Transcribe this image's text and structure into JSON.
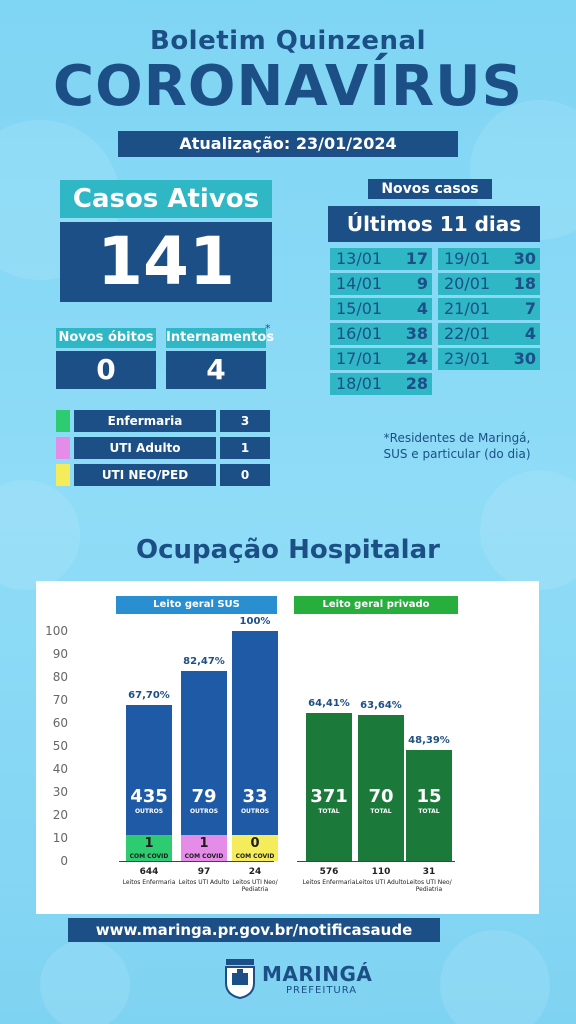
{
  "header": {
    "subtitle": "Boletim Quinzenal",
    "title": "CORONAVÍRUS",
    "update": "Atualização: 23/01/2024"
  },
  "active_cases": {
    "label": "Casos Ativos",
    "value": "141"
  },
  "deaths": {
    "label": "Novos óbitos",
    "value": "0"
  },
  "hospitalizations": {
    "label": "Internamentos",
    "asterisk": "*",
    "value": "4"
  },
  "breakdown": [
    {
      "label": "Enfermaria",
      "value": "3",
      "color": "#2ecc71"
    },
    {
      "label": "UTI Adulto",
      "value": "1",
      "color": "#e58ce8"
    },
    {
      "label": "UTI NEO/PED",
      "value": "0",
      "color": "#f5ec5b"
    }
  ],
  "new_cases": {
    "label": "Novos casos",
    "period": "Últimos 11 dias",
    "days": [
      {
        "date": "13/01",
        "value": "17"
      },
      {
        "date": "14/01",
        "value": "9"
      },
      {
        "date": "15/01",
        "value": "4"
      },
      {
        "date": "16/01",
        "value": "38"
      },
      {
        "date": "17/01",
        "value": "24"
      },
      {
        "date": "18/01",
        "value": "28"
      },
      {
        "date": "19/01",
        "value": "30"
      },
      {
        "date": "20/01",
        "value": "18"
      },
      {
        "date": "21/01",
        "value": "7"
      },
      {
        "date": "22/01",
        "value": "4"
      },
      {
        "date": "23/01",
        "value": "30"
      }
    ],
    "note": "*Residentes de Maringá, SUS e particular (do dia)"
  },
  "occupancy": {
    "title": "Ocupação Hospitalar",
    "sus_label": "Leito geral SUS",
    "private_label": "Leito geral privado",
    "url": "www.maringa.pr.gov.br/notificasaude"
  },
  "chart_data": {
    "type": "bar",
    "ylim": [
      0,
      100
    ],
    "yticks": [
      "100",
      "90",
      "80",
      "70",
      "60",
      "50",
      "40",
      "30",
      "20",
      "10",
      "0"
    ],
    "groups": [
      {
        "name": "Leito geral SUS",
        "bars": [
          {
            "pct": 67.7,
            "pct_label": "67,70%",
            "others": "435",
            "others_label": "OUTROS",
            "covid": "1",
            "covid_label": "COM COVID",
            "covid_color": "#2ecc71",
            "beds": "644",
            "category": "Leitos Enfermaria"
          },
          {
            "pct": 82.47,
            "pct_label": "82,47%",
            "others": "79",
            "others_label": "OUTROS",
            "covid": "1",
            "covid_label": "COM COVID",
            "covid_color": "#e58ce8",
            "beds": "97",
            "category": "Leitos UTI Adulto"
          },
          {
            "pct": 100,
            "pct_label": "100%",
            "others": "33",
            "others_label": "OUTROS",
            "covid": "0",
            "covid_label": "COM COVID",
            "covid_color": "#f5ec5b",
            "beds": "24",
            "category": "Leitos UTI Neo/ Pediatria"
          }
        ]
      },
      {
        "name": "Leito geral privado",
        "bars": [
          {
            "pct": 64.41,
            "pct_label": "64,41%",
            "total": "371",
            "total_label": "TOTAL",
            "beds": "576",
            "category": "Leitos Enfermaria"
          },
          {
            "pct": 63.64,
            "pct_label": "63,64%",
            "total": "70",
            "total_label": "TOTAL",
            "beds": "110",
            "category": "Leitos UTI Adulto"
          },
          {
            "pct": 48.39,
            "pct_label": "48,39%",
            "total": "15",
            "total_label": "TOTAL",
            "beds": "31",
            "category": "Leitos UTI Neo/ Pediatria"
          }
        ]
      }
    ],
    "colors": {
      "sus": "#1f5aa6",
      "private": "#1b7a3a",
      "sus_header": "#2a8fd0",
      "private_header": "#27ae3c"
    }
  },
  "footer": {
    "brand": "MARINGÁ",
    "sub": "PREFEITURA"
  }
}
